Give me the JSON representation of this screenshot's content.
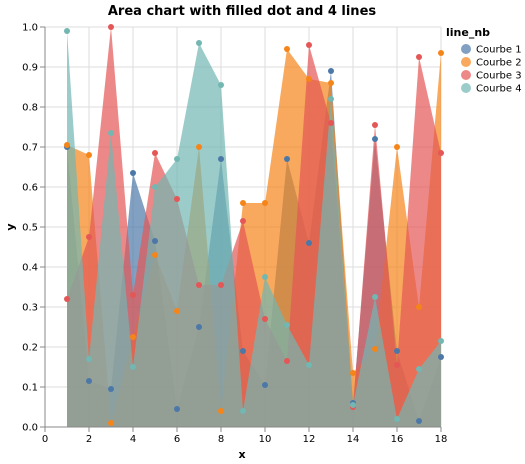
{
  "chart_data": {
    "type": "area",
    "title": "Area chart with filled dot and 4 lines",
    "xlabel": "x",
    "ylabel": "y",
    "xlim": [
      0,
      18
    ],
    "ylim": [
      0,
      1
    ],
    "x_ticks": [
      "0",
      "2",
      "4",
      "6",
      "8",
      "10",
      "12",
      "14",
      "16",
      "18"
    ],
    "y_ticks": [
      "0.0",
      "0.1",
      "0.2",
      "0.3",
      "0.4",
      "0.5",
      "0.6",
      "0.7",
      "0.8",
      "0.9",
      "1.0"
    ],
    "grid": true,
    "legend_title": "line_nb",
    "legend_position": "right",
    "x": [
      1,
      2,
      3,
      4,
      5,
      6,
      7,
      8,
      9,
      10,
      11,
      12,
      13,
      14,
      15,
      16,
      17,
      18
    ],
    "series": [
      {
        "name": "Courbe 1",
        "color": "#4c78a8",
        "values": [
          0.7,
          0.115,
          0.095,
          0.635,
          0.465,
          0.045,
          0.25,
          0.67,
          0.19,
          0.105,
          0.67,
          0.46,
          0.89,
          0.06,
          0.72,
          0.19,
          0.015,
          0.175
        ]
      },
      {
        "name": "Courbe 2",
        "color": "#f58518",
        "values": [
          0.705,
          0.68,
          0.01,
          0.225,
          0.43,
          0.29,
          0.7,
          0.04,
          0.56,
          0.56,
          0.945,
          0.87,
          0.86,
          0.135,
          0.195,
          0.7,
          0.3,
          0.935
        ]
      },
      {
        "name": "Courbe 3",
        "color": "#e45756",
        "values": [
          0.32,
          0.475,
          1.0,
          0.33,
          0.685,
          0.57,
          0.355,
          0.355,
          0.515,
          0.27,
          0.165,
          0.955,
          0.76,
          0.05,
          0.755,
          0.155,
          0.925,
          0.685
        ]
      },
      {
        "name": "Courbe 4",
        "color": "#72b7b2",
        "values": [
          0.99,
          0.17,
          0.735,
          0.15,
          0.6,
          0.67,
          0.96,
          0.855,
          0.04,
          0.375,
          0.255,
          0.155,
          0.82,
          0.055,
          0.325,
          0.02,
          0.145,
          0.215
        ]
      }
    ]
  }
}
